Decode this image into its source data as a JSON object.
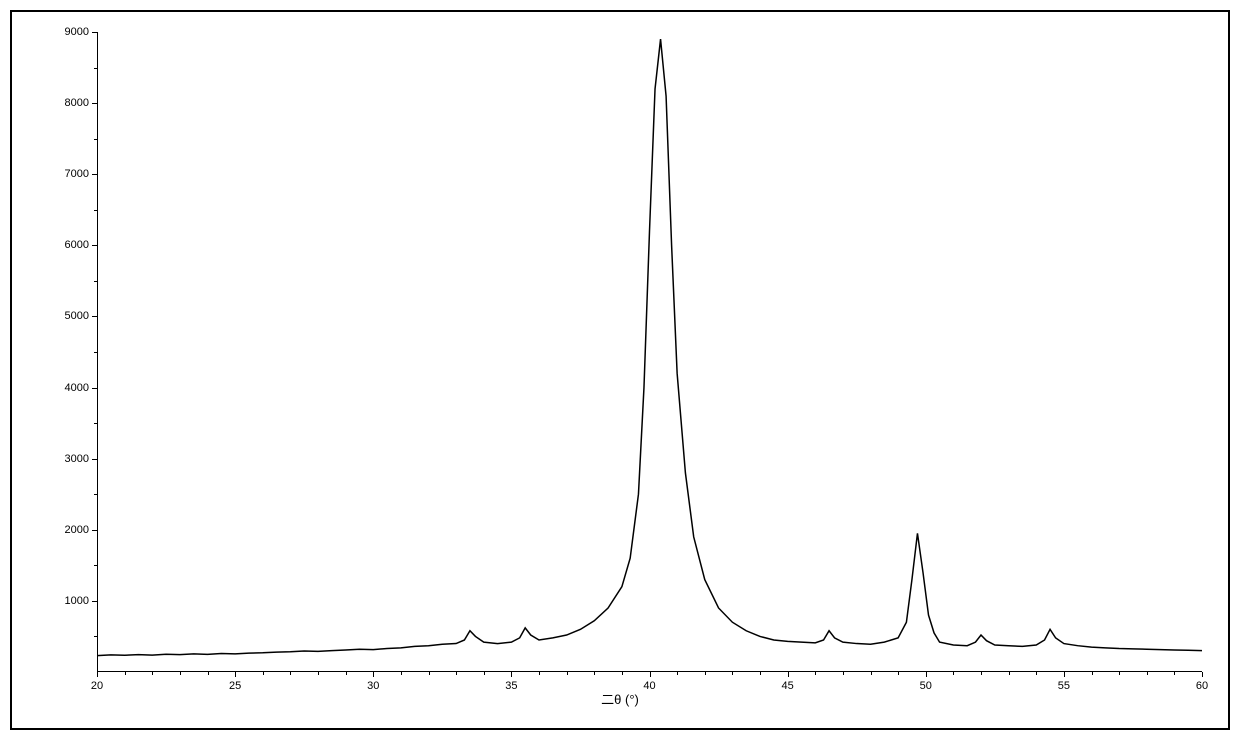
{
  "chart": {
    "type": "line",
    "xlabel": "二θ (°)",
    "ylabel": "",
    "x": {
      "min": 20,
      "max": 60,
      "ticks": [
        20,
        25,
        30,
        35,
        40,
        45,
        50,
        55,
        60
      ],
      "tick_labels": [
        "20",
        "25",
        "30",
        "35",
        "40",
        "45",
        "50",
        "55",
        "60"
      ],
      "minor_step": 1
    },
    "y": {
      "min": 0,
      "max": 9000,
      "ticks": [
        1000,
        2000,
        3000,
        4000,
        5000,
        6000,
        7000,
        8000,
        9000
      ],
      "tick_labels": [
        "1000",
        "2000",
        "3000",
        "4000",
        "5000",
        "6000",
        "7000",
        "8000",
        "9000"
      ],
      "minor_step": 500
    },
    "line_color": "#000000",
    "line_width": 1.5,
    "background_color": "#ffffff",
    "border_color": "#000000",
    "tick_fontsize": 11,
    "label_fontsize": 13,
    "series": [
      {
        "x": 20.0,
        "y": 230
      },
      {
        "x": 20.5,
        "y": 240
      },
      {
        "x": 21.0,
        "y": 235
      },
      {
        "x": 21.5,
        "y": 245
      },
      {
        "x": 22.0,
        "y": 238
      },
      {
        "x": 22.5,
        "y": 250
      },
      {
        "x": 23.0,
        "y": 245
      },
      {
        "x": 23.5,
        "y": 255
      },
      {
        "x": 24.0,
        "y": 248
      },
      {
        "x": 24.5,
        "y": 260
      },
      {
        "x": 25.0,
        "y": 255
      },
      {
        "x": 25.5,
        "y": 265
      },
      {
        "x": 26.0,
        "y": 270
      },
      {
        "x": 26.5,
        "y": 280
      },
      {
        "x": 27.0,
        "y": 285
      },
      {
        "x": 27.5,
        "y": 295
      },
      {
        "x": 28.0,
        "y": 290
      },
      {
        "x": 28.5,
        "y": 300
      },
      {
        "x": 29.0,
        "y": 310
      },
      {
        "x": 29.5,
        "y": 320
      },
      {
        "x": 30.0,
        "y": 315
      },
      {
        "x": 30.5,
        "y": 330
      },
      {
        "x": 31.0,
        "y": 340
      },
      {
        "x": 31.5,
        "y": 360
      },
      {
        "x": 32.0,
        "y": 370
      },
      {
        "x": 32.5,
        "y": 390
      },
      {
        "x": 33.0,
        "y": 400
      },
      {
        "x": 33.3,
        "y": 450
      },
      {
        "x": 33.5,
        "y": 580
      },
      {
        "x": 33.7,
        "y": 500
      },
      {
        "x": 34.0,
        "y": 420
      },
      {
        "x": 34.5,
        "y": 400
      },
      {
        "x": 35.0,
        "y": 420
      },
      {
        "x": 35.3,
        "y": 480
      },
      {
        "x": 35.5,
        "y": 620
      },
      {
        "x": 35.7,
        "y": 520
      },
      {
        "x": 36.0,
        "y": 450
      },
      {
        "x": 36.5,
        "y": 480
      },
      {
        "x": 37.0,
        "y": 520
      },
      {
        "x": 37.5,
        "y": 600
      },
      {
        "x": 38.0,
        "y": 720
      },
      {
        "x": 38.5,
        "y": 900
      },
      {
        "x": 39.0,
        "y": 1200
      },
      {
        "x": 39.3,
        "y": 1600
      },
      {
        "x": 39.6,
        "y": 2500
      },
      {
        "x": 39.8,
        "y": 4000
      },
      {
        "x": 40.0,
        "y": 6200
      },
      {
        "x": 40.2,
        "y": 8200
      },
      {
        "x": 40.4,
        "y": 8900
      },
      {
        "x": 40.6,
        "y": 8100
      },
      {
        "x": 40.8,
        "y": 6000
      },
      {
        "x": 41.0,
        "y": 4200
      },
      {
        "x": 41.3,
        "y": 2800
      },
      {
        "x": 41.6,
        "y": 1900
      },
      {
        "x": 42.0,
        "y": 1300
      },
      {
        "x": 42.5,
        "y": 900
      },
      {
        "x": 43.0,
        "y": 700
      },
      {
        "x": 43.5,
        "y": 580
      },
      {
        "x": 44.0,
        "y": 500
      },
      {
        "x": 44.5,
        "y": 450
      },
      {
        "x": 45.0,
        "y": 430
      },
      {
        "x": 45.5,
        "y": 420
      },
      {
        "x": 46.0,
        "y": 410
      },
      {
        "x": 46.3,
        "y": 450
      },
      {
        "x": 46.5,
        "y": 580
      },
      {
        "x": 46.7,
        "y": 480
      },
      {
        "x": 47.0,
        "y": 420
      },
      {
        "x": 47.5,
        "y": 400
      },
      {
        "x": 48.0,
        "y": 390
      },
      {
        "x": 48.5,
        "y": 420
      },
      {
        "x": 49.0,
        "y": 480
      },
      {
        "x": 49.3,
        "y": 700
      },
      {
        "x": 49.5,
        "y": 1300
      },
      {
        "x": 49.7,
        "y": 1950
      },
      {
        "x": 49.9,
        "y": 1400
      },
      {
        "x": 50.1,
        "y": 800
      },
      {
        "x": 50.3,
        "y": 550
      },
      {
        "x": 50.5,
        "y": 420
      },
      {
        "x": 51.0,
        "y": 380
      },
      {
        "x": 51.5,
        "y": 370
      },
      {
        "x": 51.8,
        "y": 420
      },
      {
        "x": 52.0,
        "y": 520
      },
      {
        "x": 52.2,
        "y": 440
      },
      {
        "x": 52.5,
        "y": 380
      },
      {
        "x": 53.0,
        "y": 370
      },
      {
        "x": 53.5,
        "y": 360
      },
      {
        "x": 54.0,
        "y": 380
      },
      {
        "x": 54.3,
        "y": 450
      },
      {
        "x": 54.5,
        "y": 600
      },
      {
        "x": 54.7,
        "y": 480
      },
      {
        "x": 55.0,
        "y": 400
      },
      {
        "x": 55.5,
        "y": 370
      },
      {
        "x": 56.0,
        "y": 350
      },
      {
        "x": 56.5,
        "y": 340
      },
      {
        "x": 57.0,
        "y": 330
      },
      {
        "x": 57.5,
        "y": 325
      },
      {
        "x": 58.0,
        "y": 320
      },
      {
        "x": 58.5,
        "y": 315
      },
      {
        "x": 59.0,
        "y": 310
      },
      {
        "x": 59.5,
        "y": 305
      },
      {
        "x": 60.0,
        "y": 300
      }
    ]
  }
}
